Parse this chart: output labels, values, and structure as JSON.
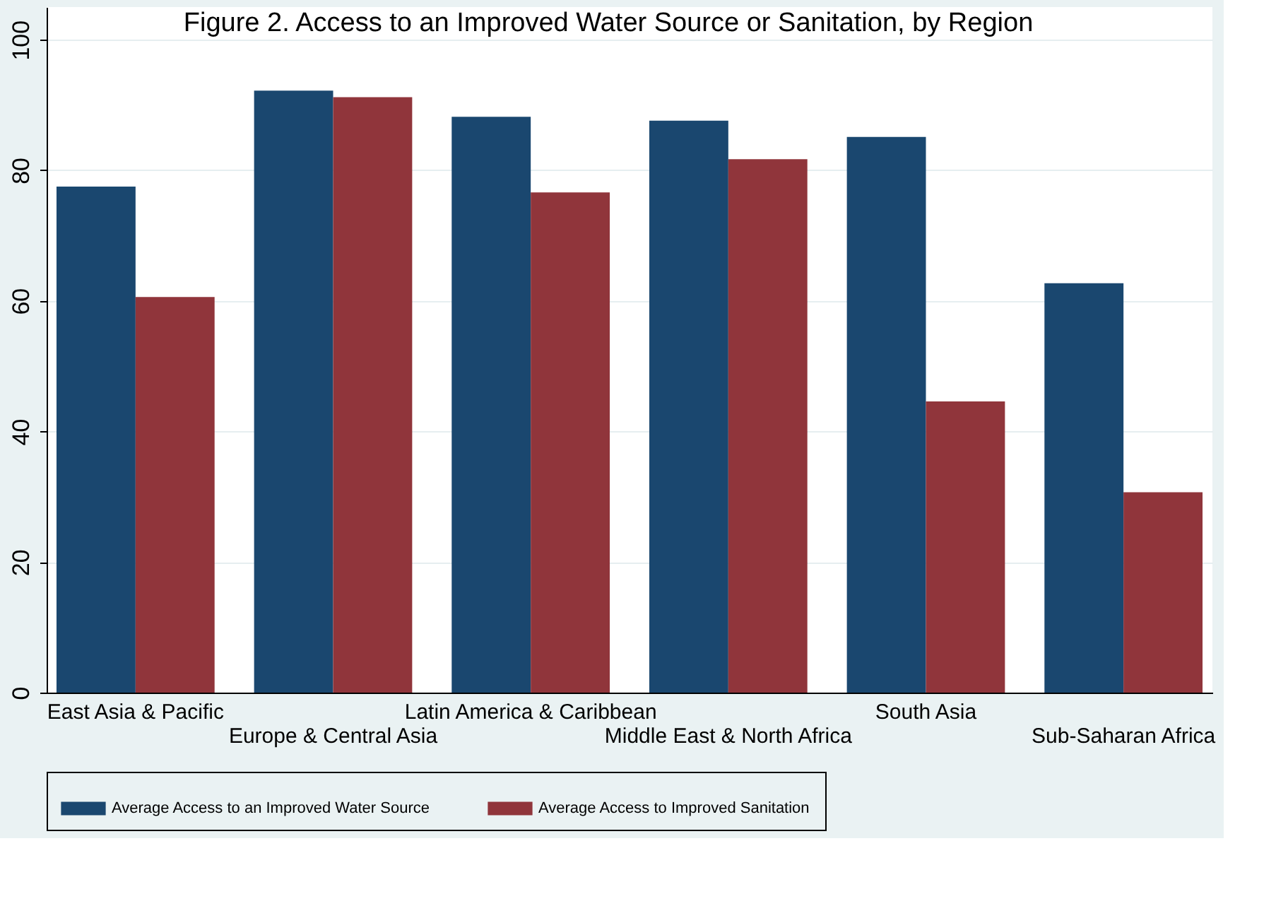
{
  "chart_data": {
    "type": "bar",
    "title": "Figure 2. Access to an Improved Water Source or Sanitation, by Region",
    "categories": [
      "East Asia & Pacific",
      "Europe & Central Asia",
      "Latin America & Caribbean",
      "Middle East & North Africa",
      "South Asia",
      "Sub-Saharan Africa"
    ],
    "series": [
      {
        "name": "Average Access to an Improved Water Source",
        "color": "#1a476f",
        "values": [
          77.5,
          92.2,
          88.2,
          87.6,
          85.1,
          62.7
        ]
      },
      {
        "name": "Average Access to Improved Sanitation",
        "color": "#90353b",
        "values": [
          60.6,
          91.2,
          76.6,
          81.7,
          44.6,
          30.7
        ]
      }
    ],
    "ylim": [
      0,
      105
    ],
    "yticks": [
      0,
      20,
      40,
      60,
      80,
      100
    ],
    "grid": "y",
    "legend": "bottom"
  }
}
